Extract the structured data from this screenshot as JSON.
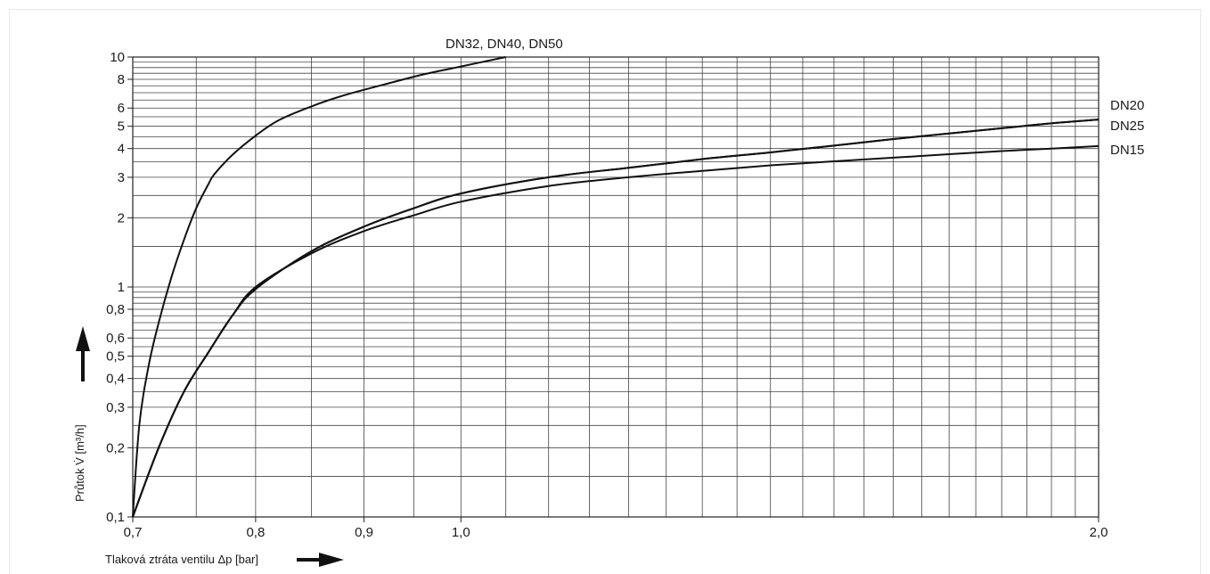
{
  "chart_data": {
    "type": "line",
    "title": "",
    "xlabel": "Tlaková ztráta ventilu  Δp [bar]",
    "ylabel": "Průtok  V̇ [m³/h]",
    "x_scale": "log",
    "y_scale": "log",
    "xlim": [
      0.7,
      2.0
    ],
    "ylim": [
      0.1,
      10
    ],
    "grid": true,
    "legend": "labels at line ends",
    "x_ticks": [
      "0,7",
      "0,8",
      "0,9",
      "1,0",
      "2,0"
    ],
    "x_tick_values": [
      0.7,
      0.8,
      0.9,
      1.0,
      2.0
    ],
    "y_ticks": [
      "0,1",
      "0,2",
      "0,3",
      "0,4",
      "0,5",
      "0,6",
      "0,8",
      "1",
      "2",
      "3",
      "4",
      "5",
      "6",
      "8",
      "10"
    ],
    "y_tick_values": [
      0.1,
      0.2,
      0.3,
      0.4,
      0.5,
      0.6,
      0.8,
      1,
      2,
      3,
      4,
      5,
      6,
      8,
      10
    ],
    "series": [
      {
        "name": "DN32, DN40, DN50",
        "x": [
          0.7,
          0.705,
          0.712,
          0.72,
          0.73,
          0.74,
          0.75,
          0.76,
          0.765,
          0.78,
          0.8,
          0.82,
          0.85,
          0.88,
          0.92,
          0.96,
          1.0,
          1.05
        ],
        "y": [
          0.1,
          0.25,
          0.45,
          0.7,
          1.1,
          1.6,
          2.2,
          2.8,
          3.1,
          3.75,
          4.55,
          5.3,
          6.1,
          6.8,
          7.6,
          8.4,
          9.1,
          10.0
        ]
      },
      {
        "name": "DN20",
        "x": [
          0.7,
          0.72,
          0.74,
          0.76,
          0.78,
          0.8,
          0.85,
          0.9,
          0.95,
          1.0,
          1.1,
          1.2,
          1.3,
          1.4,
          1.5,
          1.6,
          1.7,
          1.8,
          1.9,
          2.0
        ],
        "y": [
          0.1,
          0.2,
          0.35,
          0.52,
          0.75,
          0.98,
          1.43,
          1.83,
          2.2,
          2.55,
          3.0,
          3.3,
          3.6,
          3.85,
          4.12,
          4.4,
          4.65,
          4.9,
          5.15,
          5.35
        ]
      },
      {
        "name": "DN25",
        "x": [
          0.7,
          0.72,
          0.74,
          0.76,
          0.78,
          0.8,
          0.85,
          0.9,
          0.95,
          1.0,
          1.1,
          1.2,
          1.3,
          1.4,
          1.5,
          1.6,
          1.7,
          1.8,
          1.9,
          2.0
        ],
        "y": [
          0.1,
          0.2,
          0.35,
          0.52,
          0.75,
          0.98,
          1.43,
          1.83,
          2.2,
          2.55,
          3.0,
          3.3,
          3.6,
          3.85,
          4.12,
          4.4,
          4.65,
          4.9,
          5.15,
          5.35
        ]
      },
      {
        "name": "DN15",
        "x": [
          0.7,
          0.72,
          0.74,
          0.76,
          0.78,
          0.8,
          0.85,
          0.9,
          0.95,
          1.0,
          1.1,
          1.2,
          1.3,
          1.4,
          1.5,
          1.6,
          1.7,
          1.8,
          1.9,
          2.0
        ],
        "y": [
          0.1,
          0.2,
          0.35,
          0.52,
          0.75,
          1.0,
          1.4,
          1.75,
          2.05,
          2.35,
          2.75,
          3.0,
          3.2,
          3.38,
          3.52,
          3.65,
          3.78,
          3.9,
          4.0,
          4.1
        ]
      }
    ]
  }
}
